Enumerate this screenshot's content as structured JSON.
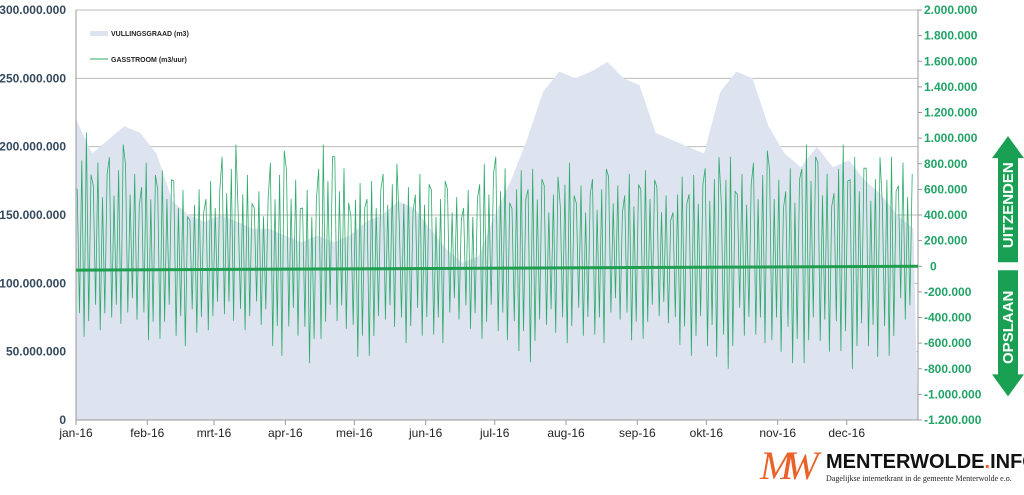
{
  "chart_data": {
    "type": "area+line",
    "legend": {
      "placement": "top-left",
      "entries": [
        "VULLINGSGRAAD (m3)",
        "GASSTROOM (m3/uur)"
      ]
    },
    "x_tick_labels": [
      "jan-16",
      "feb-16",
      "mrt-16",
      "apr-16",
      "mei-16",
      "jun-16",
      "jul-16",
      "aug-16",
      "sep-16",
      "okt-16",
      "nov-16",
      "dec-16"
    ],
    "y_left": {
      "range": [
        0,
        300000000
      ],
      "tick_labels": [
        "0",
        "50.000.000",
        "100.000.000",
        "150.000.000",
        "200.000.000",
        "250.000.000",
        "300.000.000"
      ]
    },
    "y_right": {
      "range": [
        -1200000,
        2000000
      ],
      "tick_labels": [
        "-1.200.000",
        "-1.000.000",
        "-800.000",
        "-600.000",
        "-400.000",
        "-200.000",
        "0",
        "200.000",
        "400.000",
        "600.000",
        "800.000",
        "1.000.000",
        "1.200.000",
        "1.400.000",
        "1.600.000",
        "1.800.000",
        "2.000.000"
      ]
    },
    "grid": "horizontal",
    "colors": {
      "fill": "#dde4f0",
      "gas": "#2eaa6a",
      "trend": "#1f9e50",
      "arrow": "#1aa052"
    },
    "vullingsgraad_weekly_m3": [
      220000000,
      195000000,
      205000000,
      215000000,
      210000000,
      195000000,
      160000000,
      150000000,
      145000000,
      150000000,
      145000000,
      140000000,
      140000000,
      135000000,
      130000000,
      135000000,
      130000000,
      135000000,
      145000000,
      150000000,
      160000000,
      155000000,
      140000000,
      125000000,
      115000000,
      120000000,
      150000000,
      175000000,
      205000000,
      240000000,
      255000000,
      250000000,
      255000000,
      262000000,
      250000000,
      245000000,
      210000000,
      205000000,
      200000000,
      195000000,
      240000000,
      255000000,
      250000000,
      215000000,
      195000000,
      185000000,
      200000000,
      185000000,
      190000000,
      175000000,
      165000000,
      150000000,
      140000000
    ],
    "gasstroom_weekly_range_m3_uur": [
      [
        -550000,
        1100000
      ],
      [
        -600000,
        900000
      ],
      [
        -450000,
        1000000
      ],
      [
        -500000,
        800000
      ],
      [
        -650000,
        950000
      ],
      [
        -600000,
        750000
      ],
      [
        -700000,
        700000
      ],
      [
        -550000,
        600000
      ],
      [
        -500000,
        700000
      ],
      [
        -450000,
        950000
      ],
      [
        -500000,
        750000
      ],
      [
        -550000,
        650000
      ],
      [
        -700000,
        950000
      ],
      [
        -650000,
        750000
      ],
      [
        -850000,
        700000
      ],
      [
        -600000,
        950000
      ],
      [
        -550000,
        900000
      ],
      [
        -750000,
        650000
      ],
      [
        -700000,
        700000
      ],
      [
        -500000,
        800000
      ],
      [
        -600000,
        650000
      ],
      [
        -650000,
        800000
      ],
      [
        -600000,
        700000
      ],
      [
        -500000,
        600000
      ],
      [
        -550000,
        700000
      ],
      [
        -600000,
        800000
      ],
      [
        -650000,
        900000
      ],
      [
        -700000,
        750000
      ],
      [
        -750000,
        800000
      ],
      [
        -550000,
        700000
      ],
      [
        -600000,
        850000
      ],
      [
        -650000,
        700000
      ],
      [
        -600000,
        800000
      ],
      [
        -500000,
        700000
      ],
      [
        -650000,
        850000
      ],
      [
        -600000,
        750000
      ],
      [
        -500000,
        650000
      ],
      [
        -650000,
        700000
      ],
      [
        -700000,
        750000
      ],
      [
        -750000,
        850000
      ],
      [
        -800000,
        900000
      ],
      [
        -650000,
        800000
      ],
      [
        -600000,
        950000
      ],
      [
        -800000,
        750000
      ],
      [
        -850000,
        900000
      ],
      [
        -800000,
        950000
      ],
      [
        -750000,
        850000
      ],
      [
        -700000,
        950000
      ],
      [
        -800000,
        900000
      ],
      [
        -750000,
        850000
      ],
      [
        -700000,
        900000
      ],
      [
        -500000,
        900000
      ]
    ],
    "gasstroom_trend_m3_uur": [
      -30000,
      0
    ]
  },
  "arrows": {
    "up_label": "UITZENDEN",
    "down_label": "OPSLAAN"
  },
  "logo": {
    "name_main": "MENTERWOLDE",
    "name_dot": ".",
    "name_suffix": "INFO",
    "tagline": "Dagelijkse internetkrant in de gemeente Menterwolde e.o.",
    "mark": "MW"
  }
}
